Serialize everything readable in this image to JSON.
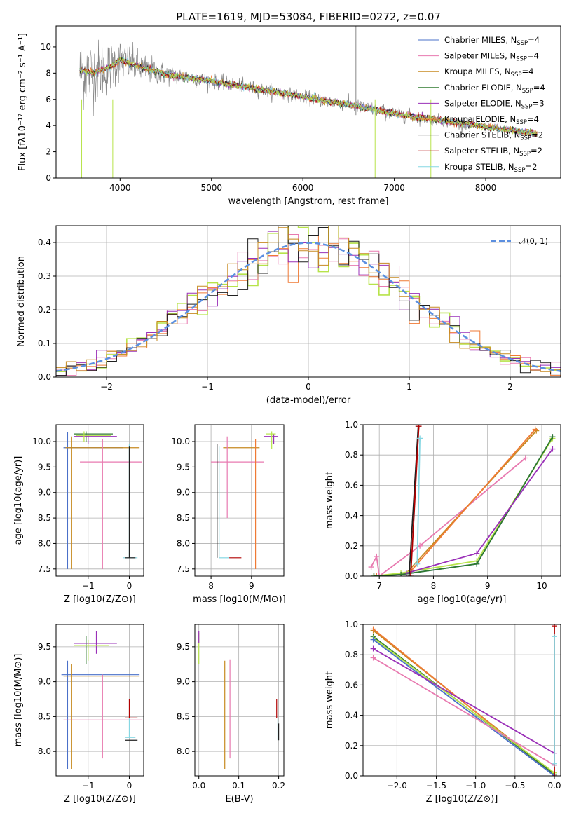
{
  "colors": {
    "chabrier_miles": "#4a70c8",
    "salpeter_miles": "#e87ab0",
    "kroupa_miles": "#c78a20",
    "chabrier_elodie": "#2f7a2f",
    "salpeter_elodie": "#9a30b8",
    "kroupa_elodie": "#ef7a35",
    "chabrier_stelib": "#202020",
    "salpeter_stelib": "#b00000",
    "kroupa_stelib": "#86d7e3",
    "data": "#888888",
    "normal": "#5b8fe0",
    "lime": "#b7e34a"
  },
  "chart_data": [
    {
      "id": "spectrum",
      "type": "line",
      "title": "PLATE=1619, MJD=53084, FIBERID=0272, z=0.07",
      "xlabel": "wavelength [Angstrom, rest frame]",
      "ylabel": "Flux [fλ10⁻¹⁷ erg cm⁻² s⁻¹ A⁻¹]",
      "xlim": [
        3300,
        8820
      ],
      "ylim": [
        0,
        11.6
      ],
      "xticks": [
        4000,
        5000,
        6000,
        7000,
        8000
      ],
      "yticks": [
        0,
        2,
        4,
        6,
        8,
        10
      ],
      "legend": [
        "Chabrier MILES, N_SSP=4",
        "Salpeter MILES, N_SSP=4",
        "Kroupa MILES, N_SSP=4",
        "Chabrier ELODIE, N_SSP=4",
        "Salpeter ELODIE, N_SSP=3",
        "Kroupa ELODIE, N_SSP=4",
        "Chabrier STELIB, N_SSP=2",
        "Salpeter STELIB, N_SSP=2",
        "Kroupa STELIB, N_SSP=2"
      ],
      "legend_location": "upper right",
      "continuum": {
        "x": [
          3560,
          3700,
          3900,
          4000,
          4200,
          4500,
          5000,
          5500,
          6000,
          6500,
          7000,
          7400,
          7800,
          8200,
          8550
        ],
        "y": [
          8.2,
          8.0,
          8.5,
          9.0,
          8.5,
          7.9,
          7.4,
          6.8,
          6.2,
          5.6,
          4.9,
          4.5,
          4.1,
          3.7,
          3.4
        ]
      },
      "noise_amplitude": {
        "x": [
          3560,
          4000,
          4500,
          5000,
          6000,
          7000,
          8000,
          8550
        ],
        "y": [
          3.0,
          1.6,
          0.8,
          0.55,
          0.5,
          0.55,
          0.35,
          0.3
        ]
      }
    },
    {
      "id": "residuals",
      "type": "line",
      "xlabel": "(data-model)/error",
      "ylabel": "Normed distribution",
      "xlim": [
        -2.5,
        2.5
      ],
      "ylim": [
        0,
        0.45
      ],
      "xticks": [
        -2,
        -1,
        0,
        1,
        2
      ],
      "yticks": [
        0.0,
        0.1,
        0.2,
        0.3,
        0.4
      ],
      "legend": [
        "𝒩(0, 1)"
      ],
      "legend_location": "upper right",
      "bins": 50
    },
    {
      "id": "age_Z",
      "type": "scatter",
      "xlabel": "Z [log10(Z/Z⊙)]",
      "ylabel": "age  [log10(age/yr)]",
      "xlim": [
        -1.78,
        0.35
      ],
      "ylim": [
        7.36,
        10.33
      ],
      "xticks": [
        -1,
        0
      ],
      "yticks": [
        7.5,
        8.0,
        8.5,
        9.0,
        9.5,
        10.0
      ],
      "points": [
        {
          "m": "chabrier_miles",
          "x": -1.5,
          "y": 9.88,
          "xl": -1.6,
          "xh": -0.15,
          "yl": 7.5,
          "yh": 10.18
        },
        {
          "m": "kroupa_miles",
          "x": -1.4,
          "y": 9.88,
          "xl": -1.55,
          "xh": 0.25,
          "yl": 7.5,
          "yh": 10.1
        },
        {
          "m": "salpeter_miles",
          "x": -0.65,
          "y": 9.6,
          "xl": -1.2,
          "xh": 0.3,
          "yl": 7.5,
          "yh": 10.05
        },
        {
          "m": "chabrier_elodie",
          "x": -1.05,
          "y": 10.15,
          "xl": -1.35,
          "xh": -0.4,
          "yl": 10.0,
          "yh": 10.2
        },
        {
          "m": "salpeter_elodie",
          "x": -1.0,
          "y": 10.1,
          "xl": -1.35,
          "xh": -0.3,
          "yl": 9.95,
          "yh": 10.15
        },
        {
          "m": "kroupa_stelib",
          "x": 0.0,
          "y": 7.72,
          "xl": -0.15,
          "xh": 0.2,
          "yl": 7.72,
          "yh": 9.95
        },
        {
          "m": "chabrier_stelib",
          "x": 0.0,
          "y": 7.72,
          "xl": -0.1,
          "xh": 0.15,
          "yl": 7.72,
          "yh": 9.9
        },
        {
          "m": "lime",
          "x": -1.1,
          "y": 10.12,
          "xl": -1.3,
          "xh": -0.45,
          "yl": 10.0,
          "yh": 10.2
        }
      ]
    },
    {
      "id": "age_mass",
      "type": "scatter",
      "xlabel": "mass [log10(M/M⊙)]",
      "ylabel": "",
      "xlim": [
        7.6,
        9.8
      ],
      "ylim": [
        7.36,
        10.33
      ],
      "xticks": [
        8,
        9
      ],
      "yticks": [
        7.5,
        8.0,
        8.5,
        9.0,
        9.5,
        10.0
      ],
      "points": [
        {
          "m": "kroupa_miles",
          "x": 8.7,
          "y": 9.88,
          "xl": 8.3,
          "xh": 9.2,
          "yl": 9.88,
          "yh": 9.88
        },
        {
          "m": "salpeter_miles",
          "x": 8.4,
          "y": 9.6,
          "xl": 8.0,
          "xh": 9.3,
          "yl": 8.5,
          "yh": 10.1
        },
        {
          "m": "chabrier_stelib",
          "x": 8.15,
          "y": 7.72,
          "xl": 8.15,
          "xh": 8.15,
          "yl": 7.72,
          "yh": 9.95
        },
        {
          "m": "kroupa_stelib",
          "x": 8.2,
          "y": 7.72,
          "xl": 8.2,
          "xh": 8.45,
          "yl": 7.72,
          "yh": 9.9
        },
        {
          "m": "salpeter_stelib",
          "x": 8.6,
          "y": 7.72,
          "xl": 8.45,
          "xh": 8.75,
          "yl": 7.72,
          "yh": 7.72
        },
        {
          "m": "kroupa_elodie",
          "x": 9.1,
          "y": 9.88,
          "xl": 9.1,
          "xh": 9.1,
          "yl": 7.5,
          "yh": 10.05
        },
        {
          "m": "salpeter_elodie",
          "x": 9.55,
          "y": 10.1,
          "xl": 9.3,
          "xh": 9.65,
          "yl": 9.95,
          "yh": 10.15
        },
        {
          "m": "lime",
          "x": 9.5,
          "y": 10.15,
          "xl": 9.35,
          "xh": 9.6,
          "yl": 9.85,
          "yh": 10.2
        }
      ]
    },
    {
      "id": "weight_age",
      "type": "line",
      "xlabel": "age  [log10(age/yr)]",
      "ylabel": "mass weight",
      "xlim": [
        6.7,
        10.35
      ],
      "ylim": [
        0,
        1.0
      ],
      "xticks": [
        7,
        8,
        9,
        10
      ],
      "yticks": [
        0.0,
        0.2,
        0.4,
        0.6,
        0.8,
        1.0
      ],
      "series": [
        {
          "m": "salpeter_miles",
          "x": [
            6.85,
            6.95,
            7.0,
            7.75,
            9.7
          ],
          "y": [
            0.06,
            0.13,
            0.0,
            0.2,
            0.78
          ]
        },
        {
          "m": "kroupa_miles",
          "x": [
            6.9,
            7.5,
            9.9
          ],
          "y": [
            0.0,
            0.02,
            0.96
          ]
        },
        {
          "m": "kroupa_elodie",
          "x": [
            6.95,
            7.55,
            9.88
          ],
          "y": [
            0.0,
            0.02,
            0.97
          ]
        },
        {
          "m": "chabrier_miles",
          "x": [
            6.9,
            7.4,
            8.8,
            10.2
          ],
          "y": [
            0.0,
            0.01,
            0.08,
            0.92
          ]
        },
        {
          "m": "lime",
          "x": [
            6.9,
            7.4,
            8.8,
            10.2
          ],
          "y": [
            0.0,
            0.02,
            0.1,
            0.91
          ]
        },
        {
          "m": "chabrier_elodie",
          "x": [
            6.9,
            7.4,
            8.8,
            10.2
          ],
          "y": [
            0.0,
            0.01,
            0.08,
            0.92
          ]
        },
        {
          "m": "salpeter_elodie",
          "x": [
            7.5,
            8.8,
            10.2
          ],
          "y": [
            0.02,
            0.15,
            0.84
          ]
        },
        {
          "m": "chabrier_stelib",
          "x": [
            7.55,
            7.72
          ],
          "y": [
            0.0,
            0.99
          ]
        },
        {
          "m": "salpeter_stelib",
          "x": [
            7.58,
            7.73
          ],
          "y": [
            0.0,
            0.99
          ]
        },
        {
          "m": "kroupa_stelib",
          "x": [
            7.7,
            7.75
          ],
          "y": [
            0.08,
            0.91
          ]
        }
      ]
    },
    {
      "id": "mass_Z",
      "type": "scatter",
      "xlabel": "Z [log10(Z/Z⊙)]",
      "ylabel": "mass [log10(M/M⊙)]",
      "xlim": [
        -1.78,
        0.35
      ],
      "ylim": [
        7.65,
        9.82
      ],
      "xticks": [
        -1,
        0
      ],
      "yticks": [
        8.0,
        8.5,
        9.0,
        9.5
      ],
      "points": [
        {
          "m": "chabrier_miles",
          "x": -1.5,
          "y": 9.1,
          "xl": -1.65,
          "xh": 0.25,
          "yl": 7.75,
          "yh": 9.3
        },
        {
          "m": "kroupa_miles",
          "x": -1.4,
          "y": 9.08,
          "xl": -1.6,
          "xh": 0.25,
          "yl": 7.75,
          "yh": 9.25
        },
        {
          "m": "salpeter_miles",
          "x": -0.65,
          "y": 8.45,
          "xl": -1.6,
          "xh": 0.3,
          "yl": 7.9,
          "yh": 9.1
        },
        {
          "m": "chabrier_elodie",
          "x": -1.05,
          "y": 9.55,
          "xl": -1.3,
          "xh": -0.75,
          "yl": 9.25,
          "yh": 9.65
        },
        {
          "m": "salpeter_elodie",
          "x": -0.8,
          "y": 9.55,
          "xl": -1.35,
          "xh": -0.3,
          "yl": 9.4,
          "yh": 9.72
        },
        {
          "m": "lime",
          "x": -1.0,
          "y": 9.52,
          "xl": -1.35,
          "xh": -0.5,
          "yl": 9.3,
          "yh": 9.6
        },
        {
          "m": "salpeter_stelib",
          "x": 0.0,
          "y": 8.48,
          "xl": -0.1,
          "xh": 0.2,
          "yl": 8.48,
          "yh": 8.75
        },
        {
          "m": "chabrier_stelib",
          "x": 0.0,
          "y": 8.16,
          "xl": -0.1,
          "xh": 0.2,
          "yl": 8.16,
          "yh": 8.16
        },
        {
          "m": "kroupa_stelib",
          "x": 0.0,
          "y": 8.2,
          "xl": -0.1,
          "xh": 0.15,
          "yl": 8.2,
          "yh": 8.48
        }
      ]
    },
    {
      "id": "mass_ebv",
      "type": "scatter",
      "xlabel": "E(B-V)",
      "ylabel": "",
      "xlim": [
        -0.01,
        0.213
      ],
      "ylim": [
        7.65,
        9.82
      ],
      "xticks": [
        0.0,
        0.1,
        0.2
      ],
      "yticks": [
        8.0,
        8.5,
        9.0,
        9.5
      ],
      "points": [
        {
          "m": "lime",
          "x": 0.0,
          "y": 9.5,
          "yl": 9.25,
          "yh": 9.7
        },
        {
          "m": "salpeter_elodie",
          "x": 0.0,
          "y": 9.6,
          "yl": 9.55,
          "yh": 9.72
        },
        {
          "m": "kroupa_miles",
          "x": 0.065,
          "y": 8.5,
          "yl": 7.75,
          "yh": 9.3
        },
        {
          "m": "salpeter_miles",
          "x": 0.078,
          "y": 8.6,
          "yl": 7.9,
          "yh": 9.32
        },
        {
          "m": "salpeter_stelib",
          "x": 0.195,
          "y": 8.6,
          "yl": 8.48,
          "yh": 8.75
        },
        {
          "m": "kroupa_stelib",
          "x": 0.198,
          "y": 8.3,
          "yl": 8.16,
          "yh": 8.48
        },
        {
          "m": "chabrier_stelib",
          "x": 0.2,
          "y": 8.25,
          "yl": 8.16,
          "yh": 8.4
        }
      ]
    },
    {
      "id": "weight_Z",
      "type": "line",
      "xlabel": "Z [log10(Z/Z⊙)]",
      "ylabel": "mass weight",
      "xlim": [
        -2.43,
        0.08
      ],
      "ylim": [
        0,
        1.0
      ],
      "xticks": [
        -2.0,
        -1.5,
        -1.0,
        -0.5,
        0.0
      ],
      "yticks": [
        0.0,
        0.2,
        0.4,
        0.6,
        0.8,
        1.0
      ],
      "series": [
        {
          "m": "kroupa_miles",
          "x": [
            -2.3,
            0.0
          ],
          "y": [
            0.96,
            0.01
          ]
        },
        {
          "m": "kroupa_elodie",
          "x": [
            -2.3,
            0.0
          ],
          "y": [
            0.97,
            0.0
          ]
        },
        {
          "m": "chabrier_elodie",
          "x": [
            -2.3,
            0.0
          ],
          "y": [
            0.92,
            0.01
          ]
        },
        {
          "m": "lime",
          "x": [
            -2.3,
            0.0
          ],
          "y": [
            0.91,
            0.02
          ]
        },
        {
          "m": "chabrier_miles",
          "x": [
            -2.3,
            0.0
          ],
          "y": [
            0.9,
            0.0
          ]
        },
        {
          "m": "salpeter_elodie",
          "x": [
            -2.3,
            0.0
          ],
          "y": [
            0.84,
            0.15
          ]
        },
        {
          "m": "salpeter_miles",
          "x": [
            -2.3,
            0.0
          ],
          "y": [
            0.78,
            0.07
          ]
        },
        {
          "m": "salpeter_stelib",
          "x": [
            0.0,
            0.0
          ],
          "y": [
            0.0,
            0.99
          ]
        },
        {
          "m": "kroupa_stelib",
          "x": [
            0.0,
            0.0
          ],
          "y": [
            0.08,
            0.92
          ]
        }
      ]
    }
  ]
}
